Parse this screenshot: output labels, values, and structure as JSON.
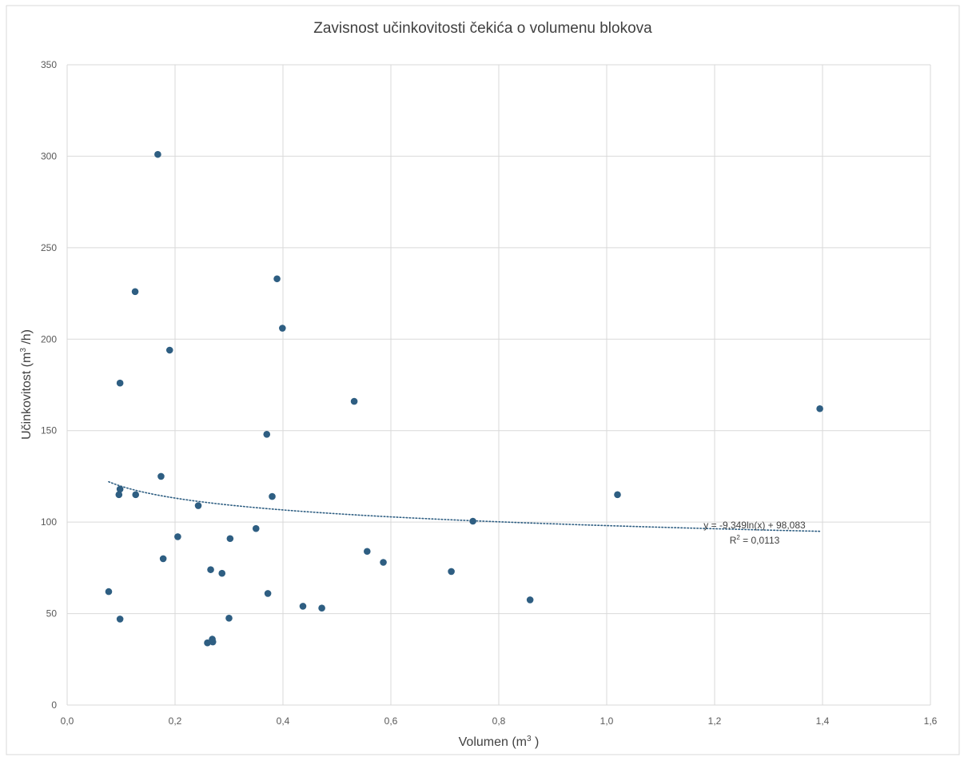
{
  "chart_data": {
    "type": "scatter",
    "title": "Zavisnost učinkovitosti čekića o volumenu blokova",
    "xlabel": {
      "pre": "Volumen (m",
      "sup": "3",
      "post": " )"
    },
    "ylabel": {
      "pre": "Učinkovitost (m",
      "sup": "3",
      "post": " /h)"
    },
    "xlim": [
      0,
      1.6
    ],
    "ylim": [
      0,
      350
    ],
    "x_ticks": [
      0,
      0.2,
      0.4,
      0.6,
      0.8,
      1.0,
      1.2,
      1.4,
      1.6
    ],
    "x_tick_labels": [
      "0,0",
      "0,2",
      "0,4",
      "0,6",
      "0,8",
      "1,0",
      "1,2",
      "1,4",
      "1,6"
    ],
    "y_ticks": [
      0,
      50,
      100,
      150,
      200,
      250,
      300,
      350
    ],
    "y_tick_labels": [
      "0",
      "50",
      "100",
      "150",
      "200",
      "250",
      "300",
      "350"
    ],
    "grid": true,
    "marker_color": "#2e5e82",
    "trendline_color": "#2e5e82",
    "points": [
      {
        "x": 0.077,
        "y": 62
      },
      {
        "x": 0.096,
        "y": 115
      },
      {
        "x": 0.098,
        "y": 118
      },
      {
        "x": 0.098,
        "y": 176
      },
      {
        "x": 0.098,
        "y": 47
      },
      {
        "x": 0.126,
        "y": 226
      },
      {
        "x": 0.127,
        "y": 115
      },
      {
        "x": 0.168,
        "y": 301
      },
      {
        "x": 0.174,
        "y": 125
      },
      {
        "x": 0.178,
        "y": 80
      },
      {
        "x": 0.19,
        "y": 194
      },
      {
        "x": 0.205,
        "y": 92
      },
      {
        "x": 0.243,
        "y": 109
      },
      {
        "x": 0.26,
        "y": 34
      },
      {
        "x": 0.266,
        "y": 74
      },
      {
        "x": 0.269,
        "y": 36
      },
      {
        "x": 0.27,
        "y": 34.5
      },
      {
        "x": 0.287,
        "y": 72
      },
      {
        "x": 0.3,
        "y": 47.5
      },
      {
        "x": 0.302,
        "y": 91
      },
      {
        "x": 0.35,
        "y": 96.5
      },
      {
        "x": 0.37,
        "y": 148
      },
      {
        "x": 0.372,
        "y": 61
      },
      {
        "x": 0.38,
        "y": 114
      },
      {
        "x": 0.389,
        "y": 233
      },
      {
        "x": 0.399,
        "y": 206
      },
      {
        "x": 0.437,
        "y": 54
      },
      {
        "x": 0.472,
        "y": 53
      },
      {
        "x": 0.532,
        "y": 166
      },
      {
        "x": 0.556,
        "y": 84
      },
      {
        "x": 0.586,
        "y": 78
      },
      {
        "x": 0.712,
        "y": 73
      },
      {
        "x": 0.752,
        "y": 100.5
      },
      {
        "x": 0.858,
        "y": 57.5
      },
      {
        "x": 1.02,
        "y": 115
      },
      {
        "x": 1.395,
        "y": 162
      }
    ],
    "trendline": {
      "type": "logarithmic",
      "a": -9.349,
      "b": 98.083,
      "x_from": 0.077,
      "x_to": 1.395,
      "equation_label": "y = -9,349ln(x) + 98,083",
      "r2_label": {
        "pre": "R",
        "sup": "2",
        "post": " = 0,0113"
      }
    }
  }
}
